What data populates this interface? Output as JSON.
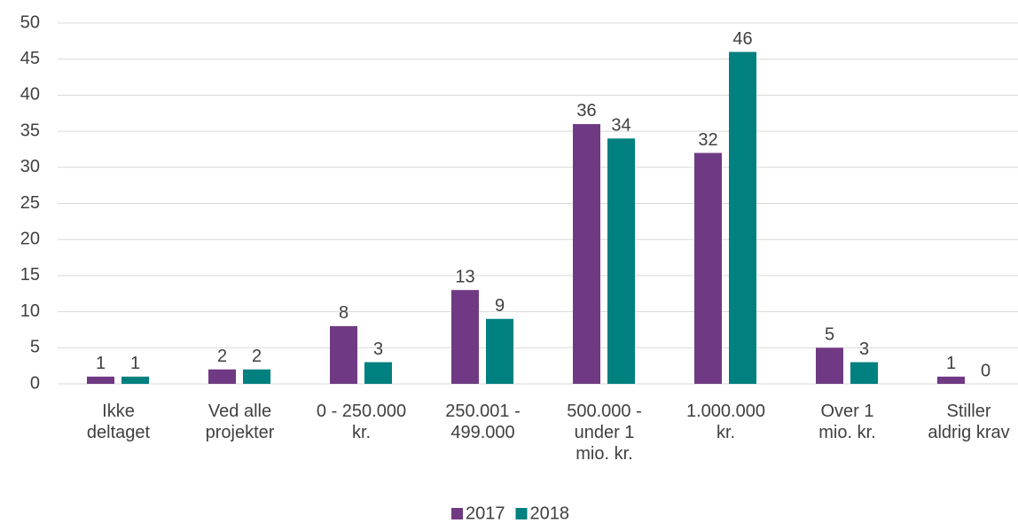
{
  "chart_data": {
    "type": "bar",
    "categories": [
      "Ikke\ndeltaget",
      "Ved alle\nprojekter",
      "0 - 250.000\nkr.",
      "250.001 -\n499.000",
      "500.000 -\nunder 1\nmio. kr.",
      "1.000.000\nkr.",
      "Over 1\nmio. kr.",
      "Stiller\naldrig krav"
    ],
    "series": [
      {
        "name": "2017",
        "color": "#6f3a83",
        "values": [
          1,
          2,
          8,
          13,
          36,
          32,
          5,
          1
        ]
      },
      {
        "name": "2018",
        "color": "#00807f",
        "values": [
          1,
          2,
          3,
          9,
          34,
          46,
          3,
          0
        ]
      }
    ],
    "ylim": [
      0,
      50
    ],
    "yticks": [
      0,
      5,
      10,
      15,
      20,
      25,
      30,
      35,
      40,
      45,
      50
    ],
    "grid": true,
    "legend": "bottom"
  }
}
